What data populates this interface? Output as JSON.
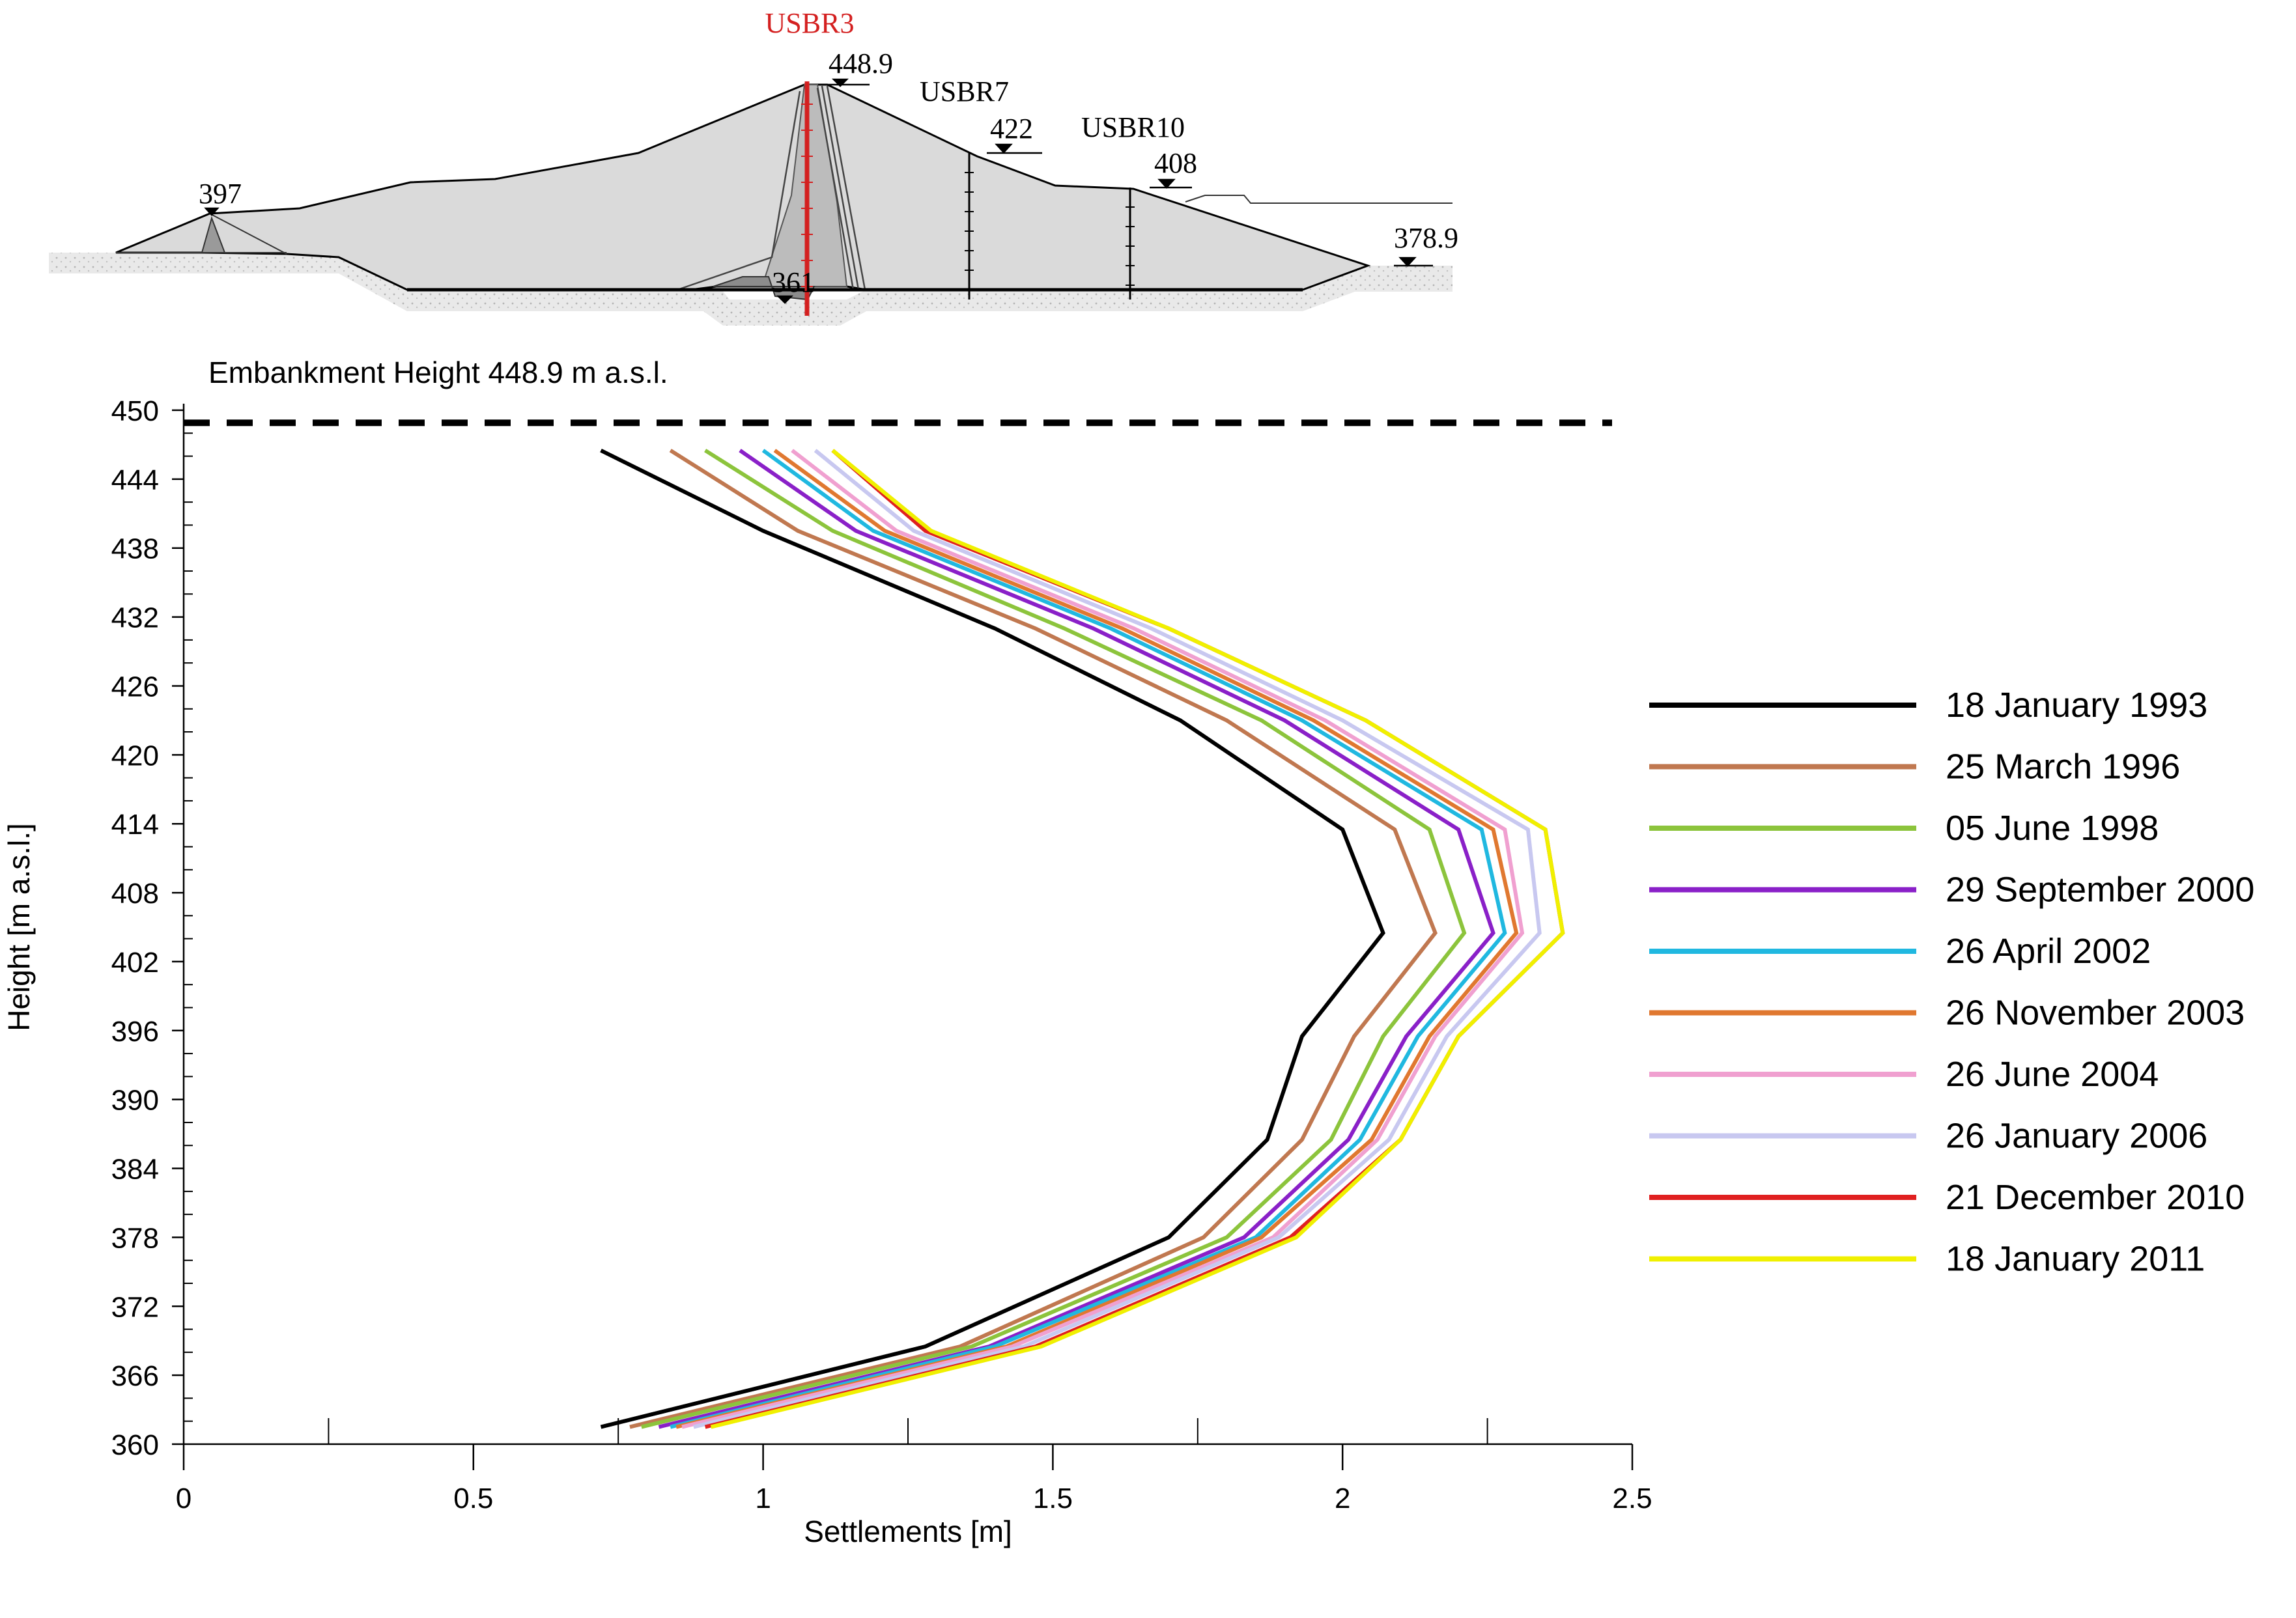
{
  "section": {
    "labels": {
      "usbr3": "USBR3",
      "usbr7": "USBR7",
      "usbr10": "USBR10",
      "crest": "448.9",
      "usbr7_elev": "422",
      "usbr10_elev": "408",
      "berm_left": "397",
      "toe_right": "378.9",
      "foundation": "361"
    },
    "usbr3_color": "#d42020"
  },
  "chart_data": {
    "type": "line",
    "annotation": "Embankment Height 448.9 m a.s.l.",
    "embankment_height": 448.9,
    "xlabel": "Settlements [m]",
    "ylabel": "Height [m a.s.l.]",
    "xlim": [
      0,
      2.5
    ],
    "ylim": [
      360,
      450
    ],
    "xticks": [
      0,
      0.5,
      1,
      1.5,
      2,
      2.5
    ],
    "xtick_labels": [
      "0",
      "0.5",
      "1",
      "1.5",
      "2",
      "2.5"
    ],
    "yticks": [
      360,
      366,
      372,
      378,
      384,
      390,
      396,
      402,
      408,
      414,
      420,
      426,
      432,
      438,
      444,
      450
    ],
    "ytick_labels": [
      "360",
      "366",
      "372",
      "378",
      "384",
      "390",
      "396",
      "402",
      "408",
      "414",
      "420",
      "426",
      "432",
      "438",
      "444",
      "450"
    ],
    "y": [
      446.5,
      439.5,
      431,
      423,
      413.5,
      404.5,
      395.5,
      386.5,
      378,
      368.5,
      361.5
    ],
    "series": [
      {
        "name": "18 January 1993",
        "color": "#000000",
        "values": [
          0.72,
          1.0,
          1.4,
          1.72,
          2.0,
          2.07,
          1.93,
          1.87,
          1.7,
          1.28,
          0.72
        ]
      },
      {
        "name": "25 March 1996",
        "color": "#c07850",
        "values": [
          0.84,
          1.06,
          1.47,
          1.8,
          2.09,
          2.16,
          2.02,
          1.93,
          1.76,
          1.34,
          0.77
        ]
      },
      {
        "name": "05 June 1998",
        "color": "#8cc43c",
        "values": [
          0.9,
          1.12,
          1.52,
          1.86,
          2.15,
          2.21,
          2.07,
          1.98,
          1.8,
          1.36,
          0.79
        ]
      },
      {
        "name": "29 September 2000",
        "color": "#8a20c8",
        "values": [
          0.96,
          1.16,
          1.57,
          1.9,
          2.2,
          2.26,
          2.11,
          2.01,
          1.83,
          1.39,
          0.82
        ]
      },
      {
        "name": "26 April 2002",
        "color": "#20b8e0",
        "values": [
          1.0,
          1.19,
          1.6,
          1.93,
          2.24,
          2.28,
          2.13,
          2.03,
          1.85,
          1.4,
          0.84
        ]
      },
      {
        "name": "26 November 2003",
        "color": "#e07830",
        "values": [
          1.02,
          1.21,
          1.62,
          1.95,
          2.26,
          2.3,
          2.15,
          2.05,
          1.86,
          1.42,
          0.85
        ]
      },
      {
        "name": "26 June 2004",
        "color": "#f0a0d0",
        "values": [
          1.05,
          1.23,
          1.64,
          1.97,
          2.28,
          2.31,
          2.16,
          2.06,
          1.88,
          1.43,
          0.86
        ]
      },
      {
        "name": "26 January 2006",
        "color": "#c8c8f0",
        "values": [
          1.09,
          1.26,
          1.67,
          2.0,
          2.32,
          2.34,
          2.18,
          2.08,
          1.89,
          1.45,
          0.88
        ]
      },
      {
        "name": "21 December 2010",
        "color": "#e02020",
        "values": [
          1.12,
          1.28,
          1.7,
          2.04,
          2.35,
          2.38,
          2.2,
          2.1,
          1.91,
          1.47,
          0.9
        ]
      },
      {
        "name": "18 January 2011",
        "color": "#f0f000",
        "values": [
          1.12,
          1.29,
          1.7,
          2.04,
          2.35,
          2.38,
          2.2,
          2.1,
          1.92,
          1.48,
          0.91
        ]
      }
    ],
    "legend_position": "right"
  }
}
